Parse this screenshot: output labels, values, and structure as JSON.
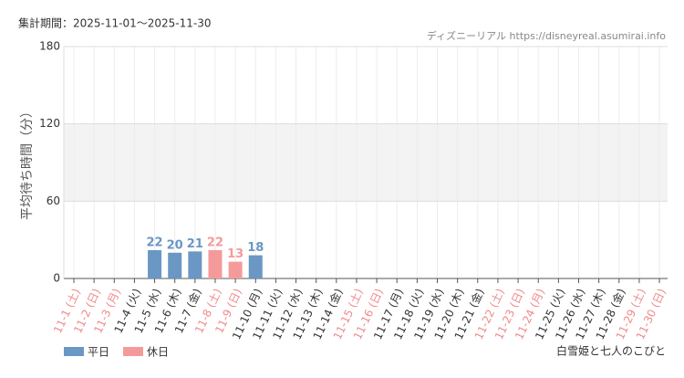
{
  "period": "集計期間：2025-11-01～2025-11-30",
  "source": "ディズニーリアル https://disneyreal.asumirai.info",
  "attraction": "白雪姫と七人のこびと",
  "chart_data": {
    "type": "bar",
    "y_label": "平均待ち時間（分）",
    "categories": [
      "11-1 (土)",
      "11-2 (日)",
      "11-3 (月)",
      "11-4 (火)",
      "11-5 (水)",
      "11-6 (木)",
      "11-7 (金)",
      "11-8 (土)",
      "11-9 (日)",
      "11-10 (月)",
      "11-11 (火)",
      "11-12 (水)",
      "11-13 (木)",
      "11-14 (金)",
      "11-15 (土)",
      "11-16 (日)",
      "11-17 (月)",
      "11-18 (火)",
      "11-19 (水)",
      "11-20 (木)",
      "11-21 (金)",
      "11-22 (土)",
      "11-23 (日)",
      "11-24 (月)",
      "11-25 (火)",
      "11-26 (水)",
      "11-27 (木)",
      "11-28 (金)",
      "11-29 (土)",
      "11-30 (日)"
    ],
    "label_colors": [
      "#f08a8a",
      "#f08a8a",
      "#f08a8a",
      "#333",
      "#333",
      "#333",
      "#333",
      "#f08a8a",
      "#f08a8a",
      "#333",
      "#333",
      "#333",
      "#333",
      "#333",
      "#f08a8a",
      "#f08a8a",
      "#333",
      "#333",
      "#333",
      "#333",
      "#333",
      "#f08a8a",
      "#f08a8a",
      "#f08a8a",
      "#333",
      "#333",
      "#333",
      "#333",
      "#f08a8a",
      "#f08a8a"
    ],
    "series": [
      {
        "name": "平日",
        "color": "#6a97c4",
        "values": [
          null,
          null,
          null,
          null,
          22,
          20,
          21,
          null,
          null,
          18,
          null,
          null,
          null,
          null,
          null,
          null,
          null,
          null,
          null,
          null,
          null,
          null,
          null,
          null,
          null,
          null,
          null,
          null,
          null,
          null
        ]
      },
      {
        "name": "休日",
        "color": "#f59a9a",
        "values": [
          null,
          null,
          null,
          null,
          null,
          null,
          null,
          22,
          13,
          null,
          null,
          null,
          null,
          null,
          null,
          null,
          null,
          null,
          null,
          null,
          null,
          null,
          null,
          null,
          null,
          null,
          null,
          null,
          null,
          null
        ]
      }
    ],
    "ylim": [
      0,
      180
    ],
    "yticks": [
      0,
      60,
      120,
      180
    ],
    "shaded_band": [
      60,
      120
    ],
    "grid": true
  }
}
